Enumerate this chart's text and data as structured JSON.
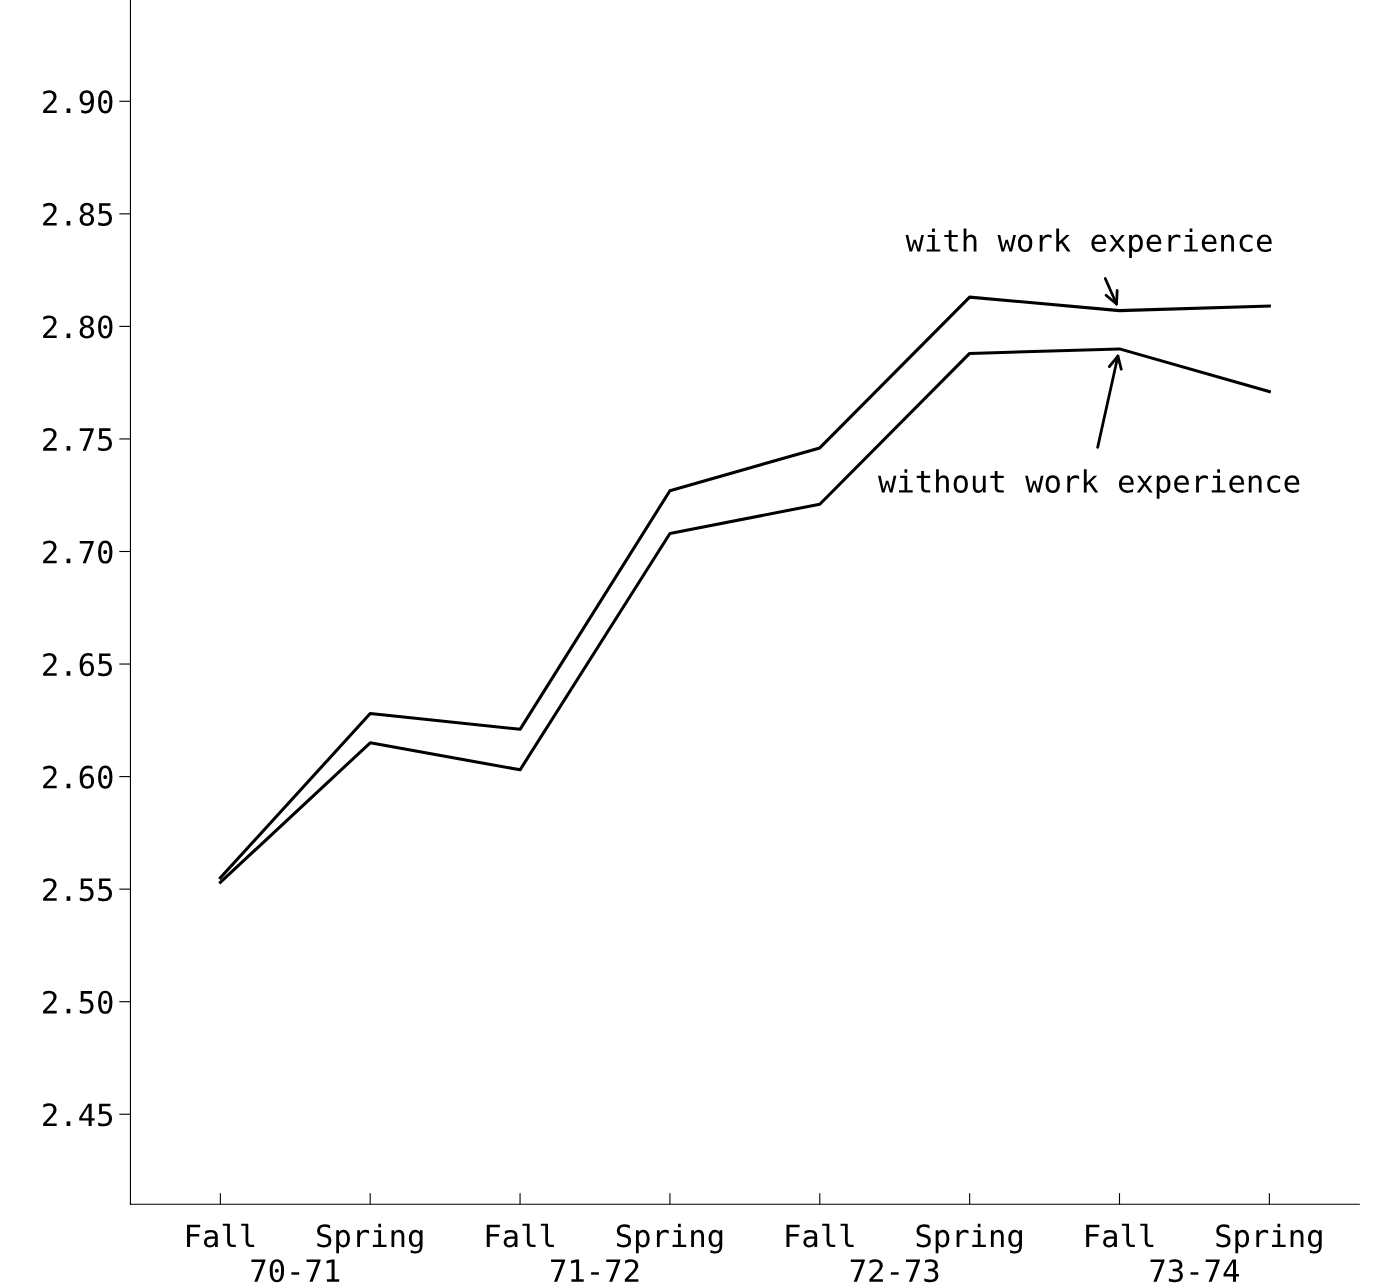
{
  "chart_data": {
    "type": "line",
    "categories": [
      "Fall",
      "Spring",
      "Fall",
      "Spring",
      "Fall",
      "Spring",
      "Fall",
      "Spring"
    ],
    "series": [
      {
        "name": "with work experience",
        "color": "#000000",
        "values": [
          2.555,
          2.628,
          2.621,
          2.727,
          2.746,
          2.813,
          2.807,
          2.809
        ]
      },
      {
        "name": "without work experience",
        "color": "#000000",
        "values": [
          2.553,
          2.615,
          2.603,
          2.708,
          2.721,
          2.788,
          2.79,
          2.771
        ]
      }
    ],
    "annotations": [
      "70-71",
      "71-72",
      "72-73",
      "73-74"
    ],
    "ylim": [
      2.41,
      2.945
    ],
    "yticks": [
      {
        "value": 2.45,
        "label": "2.45"
      },
      {
        "value": 2.5,
        "label": "2.50"
      },
      {
        "value": 2.55,
        "label": "2.55"
      },
      {
        "value": 2.6,
        "label": "2.60"
      },
      {
        "value": 2.65,
        "label": "2.65"
      },
      {
        "value": 2.7,
        "label": "2.70"
      },
      {
        "value": 2.75,
        "label": "2.75"
      },
      {
        "value": 2.8,
        "label": "2.80"
      },
      {
        "value": 2.85,
        "label": "2.85"
      },
      {
        "value": 2.9,
        "label": "2.90"
      }
    ],
    "grid": false,
    "legend": false,
    "marker": "none",
    "line_style": "solid"
  }
}
